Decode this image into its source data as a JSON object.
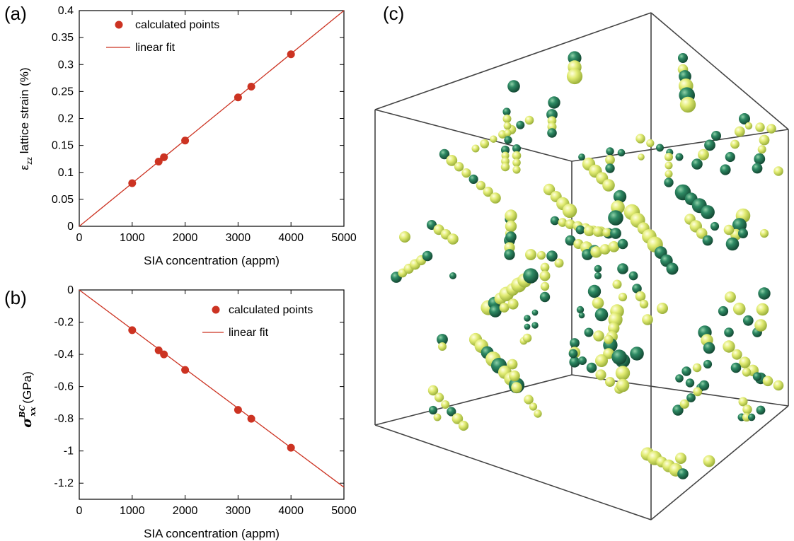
{
  "panels": {
    "a": "(a)",
    "b": "(b)",
    "c": "(c)"
  },
  "colors": {
    "series": "#cc3322",
    "sphere_dark": "#2e8a64",
    "sphere_light": "#e2ec74",
    "box": "#444444"
  },
  "chart_data": [
    {
      "id": "a",
      "type": "scatter",
      "xlabel": "SIA concentration (appm)",
      "ylabel": {
        "symbol": "ε",
        "sub": "zz",
        "rest": " lattice strain (%)"
      },
      "xlim": [
        0,
        5000
      ],
      "ylim": [
        0,
        0.4
      ],
      "xticks": [
        0,
        1000,
        2000,
        3000,
        4000,
        5000
      ],
      "xtick_labels": [
        "0",
        "1000",
        "2000",
        "3000",
        "4000",
        "5000"
      ],
      "yticks": [
        0,
        0.05,
        0.1,
        0.15,
        0.2,
        0.25,
        0.3,
        0.35,
        0.4
      ],
      "ytick_labels": [
        "0",
        "0.05",
        "0.1",
        "0.15",
        "0.2",
        "0.25",
        "0.3",
        "0.35",
        "0.4"
      ],
      "legend_position": "top-left",
      "series": [
        {
          "name": "calculated points",
          "kind": "points",
          "x": [
            1000,
            1500,
            1600,
            2000,
            3000,
            3250,
            4000
          ],
          "y": [
            0.08,
            0.12,
            0.128,
            0.159,
            0.239,
            0.259,
            0.319
          ]
        },
        {
          "name": "linear fit",
          "kind": "line",
          "x": [
            0,
            5000
          ],
          "y": [
            0,
            0.4
          ]
        }
      ]
    },
    {
      "id": "b",
      "type": "scatter",
      "xlabel": "SIA concentration (appm)",
      "ylabel": {
        "symbol": "σ",
        "sub": "xx",
        "sup": "BC",
        "rest": " (GPa)"
      },
      "xlim": [
        0,
        5000
      ],
      "ylim": [
        -1.3,
        0
      ],
      "xticks": [
        0,
        1000,
        2000,
        3000,
        4000,
        5000
      ],
      "xtick_labels": [
        "0",
        "1000",
        "2000",
        "3000",
        "4000",
        "5000"
      ],
      "yticks": [
        0,
        -0.2,
        -0.4,
        -0.6,
        -0.8,
        -1,
        -1.2
      ],
      "ytick_labels": [
        "0",
        "-0.2",
        "-0.4",
        "-0.6",
        "-0.8",
        "-1",
        "-1.2"
      ],
      "legend_position": "top-right",
      "series": [
        {
          "name": "calculated points",
          "kind": "points",
          "x": [
            1000,
            1500,
            1600,
            2000,
            3000,
            3250,
            4000
          ],
          "y": [
            -0.25,
            -0.375,
            -0.4,
            -0.497,
            -0.745,
            -0.8,
            -0.98
          ]
        },
        {
          "name": "linear fit",
          "kind": "line",
          "x": [
            0,
            5000
          ],
          "y": [
            0,
            -1.225
          ]
        }
      ]
    }
  ]
}
